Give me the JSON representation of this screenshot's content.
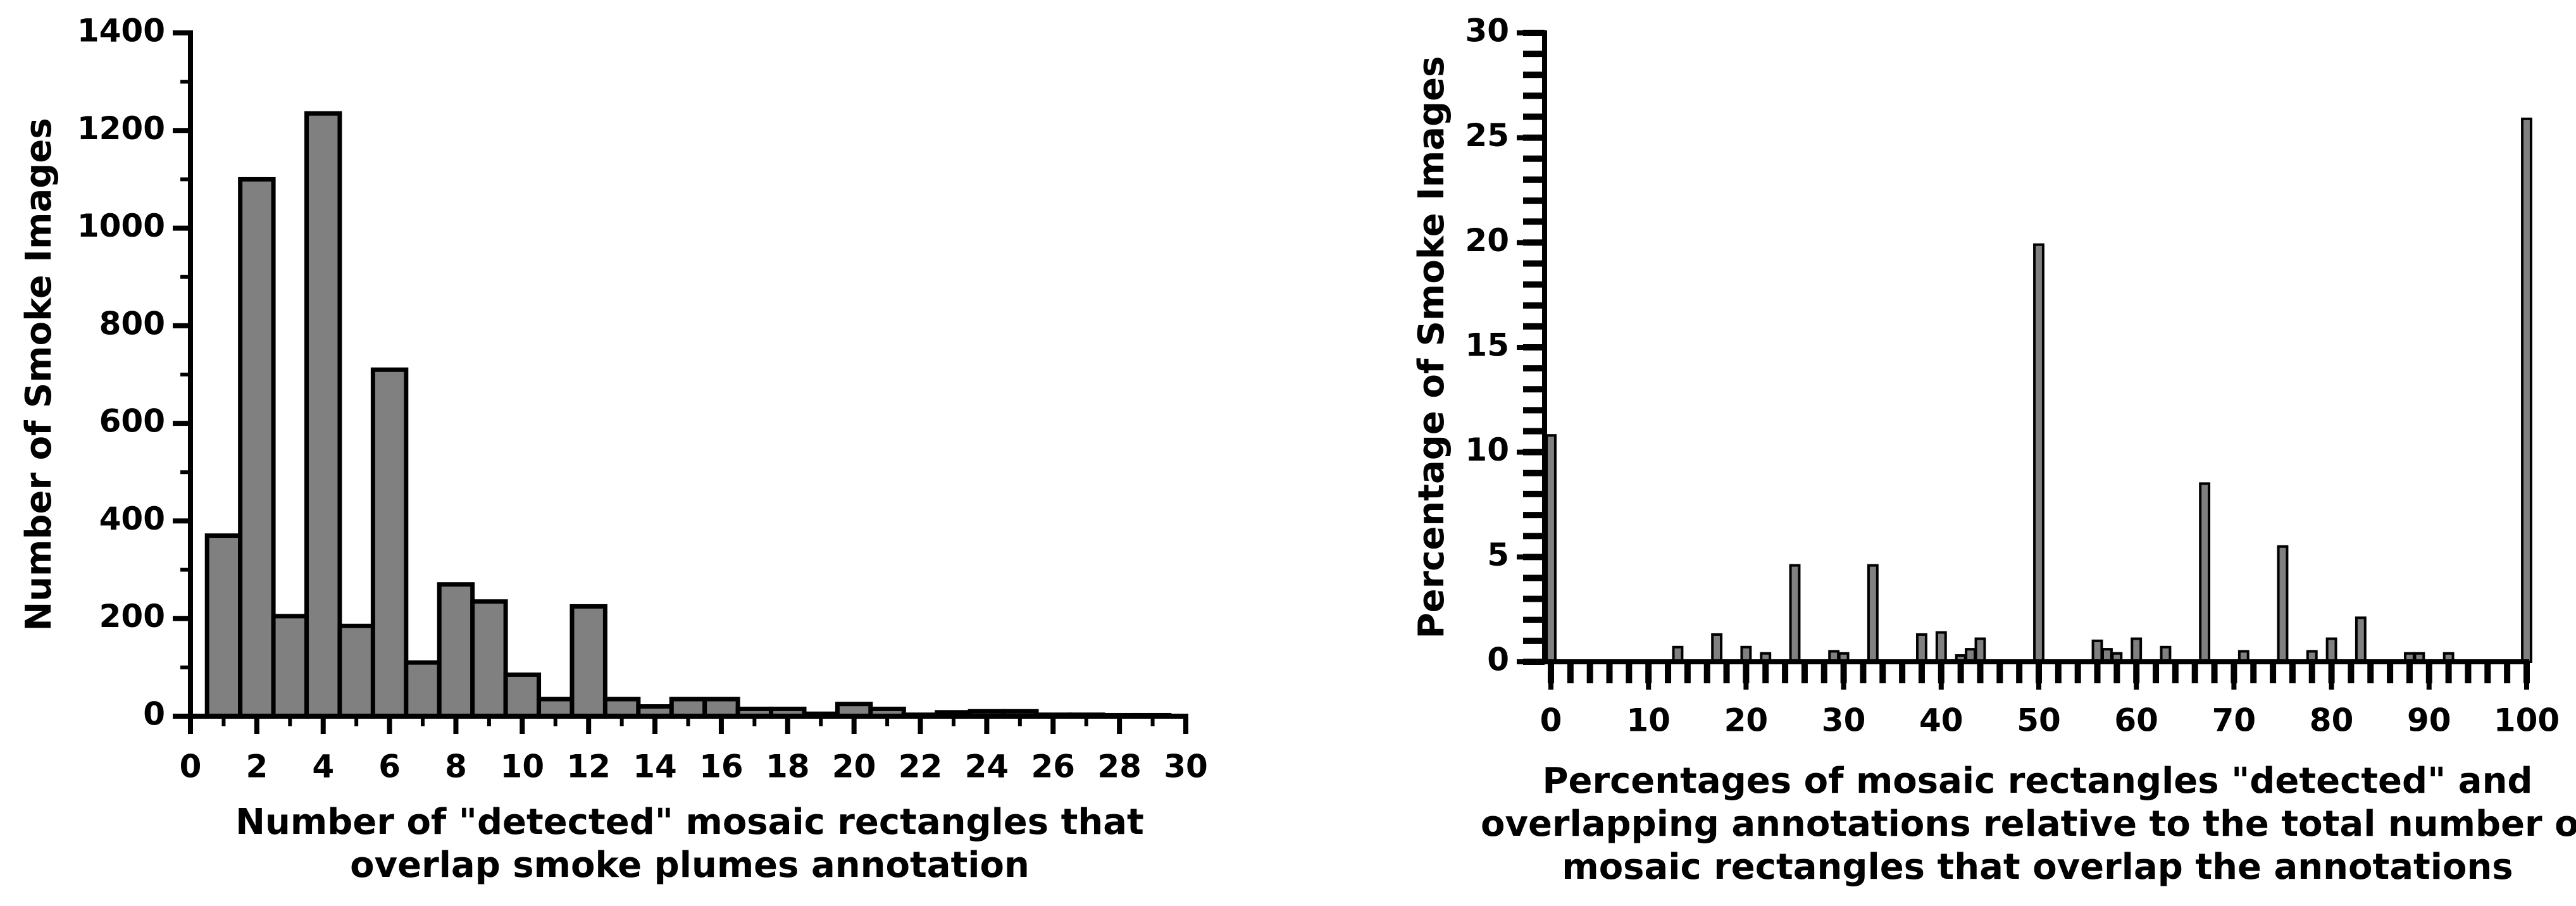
{
  "chart_data": [
    {
      "type": "histogram",
      "ylabel": "Number of Smoke Images",
      "xlabel_lines": [
        "Number of \"detected\" mosaic rectangles that",
        "overlap smoke plumes annotation"
      ],
      "bins": [
        0.5,
        1.5,
        2.5,
        3.5,
        4.5,
        5.5,
        6.5,
        7.5,
        8.5,
        9.5,
        10.5,
        11.5,
        12.5,
        13.5,
        14.5,
        15.5,
        16.5,
        17.5,
        18.5,
        19.5,
        20.5,
        21.5,
        22.5,
        23.5,
        24.5,
        25.5,
        26.5,
        27.5,
        28.5,
        29.5
      ],
      "values": [
        370,
        1100,
        205,
        1235,
        185,
        710,
        110,
        270,
        235,
        85,
        35,
        225,
        35,
        20,
        35,
        35,
        15,
        15,
        5,
        25,
        15,
        3,
        8,
        10,
        10,
        3,
        3,
        2,
        2
      ],
      "color": "#808080",
      "xlim": [
        0,
        30
      ],
      "xticks": [
        0,
        2,
        4,
        6,
        8,
        10,
        12,
        14,
        16,
        18,
        20,
        22,
        24,
        26,
        28,
        30
      ],
      "xminor_step": 1,
      "ylim": [
        0,
        1400
      ],
      "yticks": [
        0,
        200,
        400,
        600,
        800,
        1000,
        1200,
        1400
      ],
      "yminor_step": 100
    },
    {
      "type": "bar",
      "ylabel": "Percentage of Smoke Images",
      "xlabel_lines": [
        "Percentages of mosaic rectangles \"detected\" and",
        "overlapping annotations relative to the total number of",
        "mosaic rectangles that overlap the annotations"
      ],
      "x": [
        0,
        13,
        17,
        20,
        22,
        25,
        29,
        30,
        33,
        38,
        40,
        42,
        43,
        44,
        50,
        56,
        57,
        58,
        60,
        63,
        67,
        71,
        75,
        78,
        80,
        83,
        88,
        89,
        92,
        100
      ],
      "values": [
        10.8,
        0.7,
        1.3,
        0.7,
        0.4,
        4.6,
        0.5,
        0.4,
        4.6,
        1.3,
        1.4,
        0.3,
        0.6,
        1.1,
        19.9,
        1.0,
        0.6,
        0.4,
        1.1,
        0.7,
        8.5,
        0.5,
        5.5,
        0.5,
        1.1,
        2.1,
        0.4,
        0.4,
        0.4,
        25.9
      ],
      "color": "#808080",
      "xlim": [
        0,
        100
      ],
      "xticks": [
        0,
        10,
        20,
        30,
        40,
        50,
        60,
        70,
        80,
        90,
        100
      ],
      "xminor_step": 2,
      "ylim": [
        0,
        30
      ],
      "yticks": [
        0,
        5,
        10,
        15,
        20,
        25,
        30
      ],
      "yminor_step": 1
    }
  ]
}
